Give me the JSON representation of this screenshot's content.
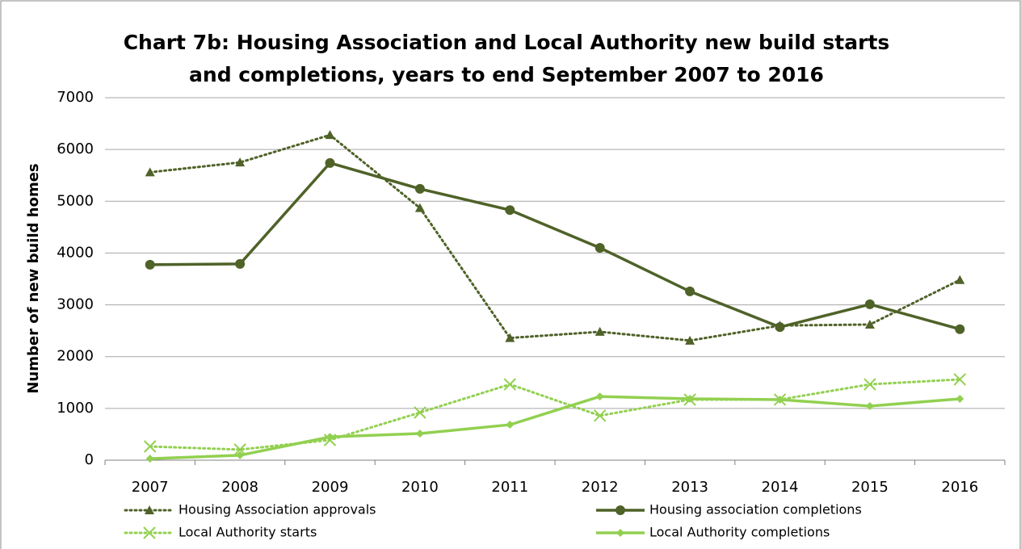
{
  "chart_data": {
    "type": "line",
    "title": [
      "Chart 7b: Housing Association and Local Authority new build starts",
      "and completions, years to end September 2007 to 2016"
    ],
    "ylabel": "Number of new build homes",
    "categories": [
      "2007",
      "2008",
      "2009",
      "2010",
      "2011",
      "2012",
      "2013",
      "2014",
      "2015",
      "2016"
    ],
    "ylim": [
      0,
      7000
    ],
    "yticks": [
      0,
      1000,
      2000,
      3000,
      4000,
      5000,
      6000,
      7000
    ],
    "grid": true,
    "series": [
      {
        "name": "Housing Association approvals",
        "color": "#4f6228",
        "dash": "dotted",
        "marker": "triangle",
        "values": [
          5560,
          5750,
          6280,
          4870,
          2360,
          2480,
          2310,
          2600,
          2620,
          3480
        ]
      },
      {
        "name": "Housing association completions",
        "color": "#4f6228",
        "dash": "solid",
        "marker": "circle",
        "values": [
          3775,
          3790,
          5740,
          5240,
          4830,
          4100,
          3260,
          2570,
          3010,
          2530
        ]
      },
      {
        "name": "Local Authority starts",
        "color": "#92d050",
        "dash": "dotted",
        "marker": "cross",
        "values": [
          265,
          205,
          390,
          920,
          1465,
          860,
          1170,
          1170,
          1465,
          1560
        ]
      },
      {
        "name": "Local Authority completions",
        "color": "#92d050",
        "dash": "solid",
        "marker": "diamond",
        "values": [
          30,
          95,
          450,
          515,
          685,
          1230,
          1185,
          1170,
          1045,
          1185
        ]
      }
    ]
  }
}
